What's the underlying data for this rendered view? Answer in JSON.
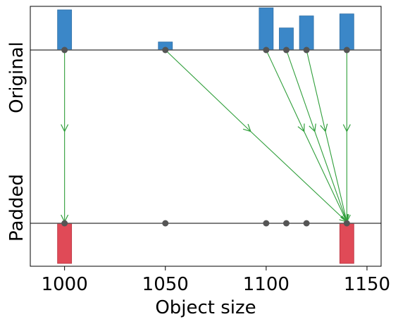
{
  "chart_data": {
    "type": "scatter",
    "xlabel": "Object size",
    "ylabel_top": "Original",
    "ylabel_bottom": "Padded",
    "xlim": [
      983,
      1157
    ],
    "x_ticks": [
      1000,
      1050,
      1100,
      1150
    ],
    "x_tick_labels": [
      "1000",
      "1050",
      "1100",
      "1150"
    ],
    "grid": false,
    "colors": {
      "original_bar": "#3b87c8",
      "padded_bar": "#e04a57",
      "arrow": "#2f9e3a",
      "point": "#555555",
      "baseline": "#555555"
    },
    "original": {
      "sizes": [
        1000,
        1050,
        1100,
        1110,
        1120,
        1140
      ],
      "counts": [
        1.0,
        0.2,
        1.05,
        0.55,
        0.85,
        0.9
      ]
    },
    "padded": {
      "sizes": [
        1000,
        1140
      ],
      "counts": [
        1.0,
        1.0
      ]
    },
    "mappings": [
      {
        "from": 1000,
        "to": 1000
      },
      {
        "from": 1050,
        "to": 1140
      },
      {
        "from": 1100,
        "to": 1140
      },
      {
        "from": 1110,
        "to": 1140
      },
      {
        "from": 1120,
        "to": 1140
      },
      {
        "from": 1140,
        "to": 1140
      }
    ],
    "padded_points": [
      1000,
      1050,
      1100,
      1110,
      1120,
      1140
    ]
  }
}
